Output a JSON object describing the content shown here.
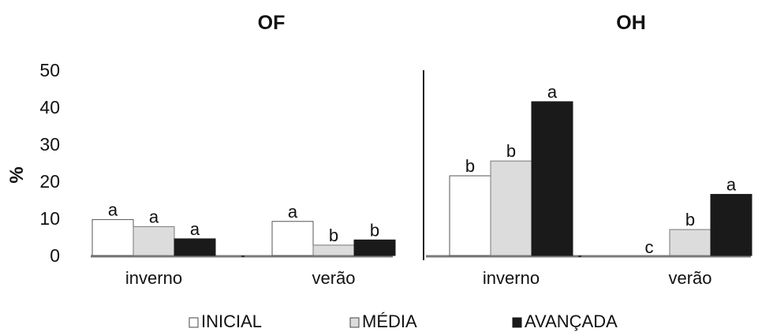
{
  "chart_data": {
    "type": "bar",
    "ylabel": "%",
    "ylim": [
      0,
      50
    ],
    "yticks": [
      0,
      10,
      20,
      30,
      40,
      50
    ],
    "series_names": [
      "INICIAL",
      "MÉDIA",
      "AVANÇADA"
    ],
    "colors": {
      "INICIAL": "#ffffff",
      "MÉDIA": "#dcdcdc",
      "AVANÇADA": "#1a1a1a"
    },
    "legend_position": "bottom",
    "panels": [
      {
        "title": "OF",
        "categories": [
          "inverno",
          "verão"
        ],
        "values": {
          "INICIAL": [
            9.7,
            9.2
          ],
          "MÉDIA": [
            7.8,
            2.8
          ],
          "AVANÇADA": [
            4.5,
            4.2
          ]
        },
        "letters": {
          "INICIAL": [
            "a",
            "a"
          ],
          "MÉDIA": [
            "a",
            "b"
          ],
          "AVANÇADA": [
            "a",
            "b"
          ]
        }
      },
      {
        "title": "OH",
        "categories": [
          "inverno",
          "verão"
        ],
        "values": {
          "INICIAL": [
            21.5,
            0
          ],
          "MÉDIA": [
            25.5,
            7.0
          ],
          "AVANÇADA": [
            41.5,
            16.5
          ]
        },
        "letters": {
          "INICIAL": [
            "b",
            "c"
          ],
          "MÉDIA": [
            "b",
            "b"
          ],
          "AVANÇADA": [
            "a",
            "a"
          ]
        }
      }
    ]
  }
}
